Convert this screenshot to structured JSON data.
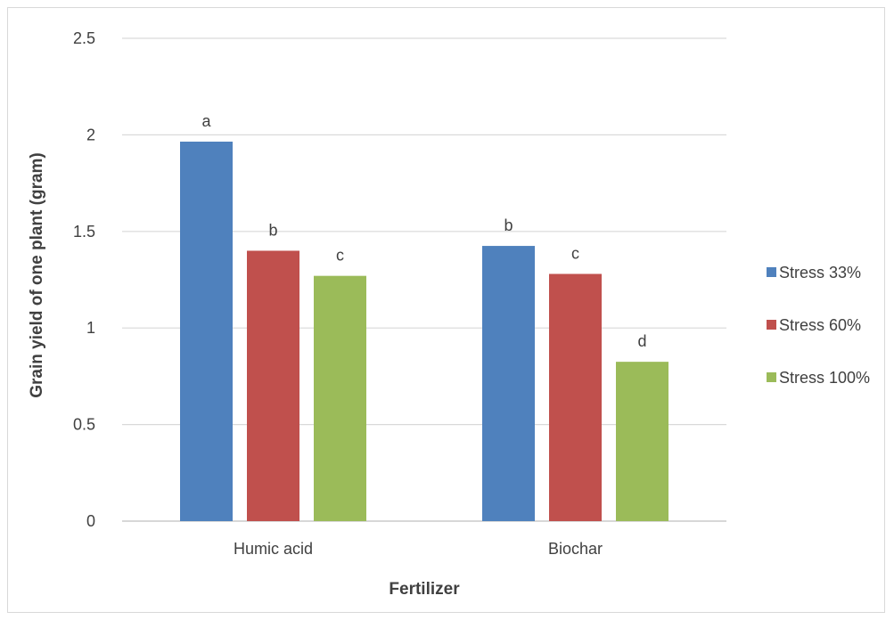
{
  "chart_data": {
    "type": "bar",
    "title": "",
    "xlabel": "Fertilizer",
    "ylabel": "Grain yield of one plant (gram)",
    "categories": [
      "Humic acid",
      "Biochar"
    ],
    "ylim": [
      0,
      2.5
    ],
    "yticks": [
      "0",
      "0.5",
      "1",
      "1.5",
      "2",
      "2.5"
    ],
    "grid": true,
    "legend_position": "right",
    "series": [
      {
        "name": "Stress 33%",
        "color": "#4f81bd",
        "values": [
          1.965,
          1.425
        ],
        "labels": [
          "a",
          "b"
        ]
      },
      {
        "name": "Stress 60%",
        "color": "#c0504d",
        "values": [
          1.4,
          1.28
        ],
        "labels": [
          "b",
          "c"
        ]
      },
      {
        "name": "Stress 100%",
        "color": "#9bbb59",
        "values": [
          1.27,
          0.825
        ],
        "labels": [
          "c",
          "d"
        ]
      }
    ]
  }
}
